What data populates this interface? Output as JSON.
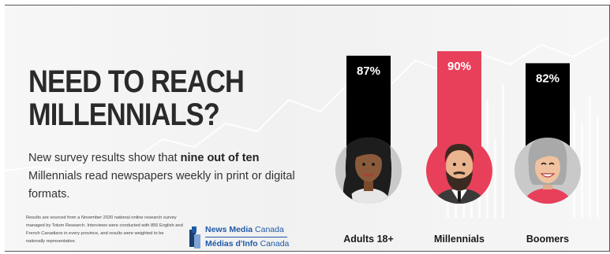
{
  "headline": {
    "line1": "NEED TO REACH",
    "line2": "MILLENNIALS?"
  },
  "subtext": {
    "before": "New survey results show that ",
    "bold": "nine out of ten",
    "after": " Millennials read newspapers weekly in print or digital formats."
  },
  "footnote": "Results are sourced from a November 2020 national online research survey managed by Totum Research. Interviews were conducted with 855 English and French Canadians in every province, and results were weighted to be nationally representative.",
  "logo": {
    "line1_bold": "News Media",
    "line1_light": " Canada",
    "line2_bold": "Médias d'Info",
    "line2_light": " Canada",
    "colors": {
      "primary": "#1f5aa6",
      "dark": "#1b3f6e",
      "light": "#7da4d4"
    }
  },
  "chart_data": {
    "type": "bar",
    "categories": [
      "Adults 18+",
      "Millennials",
      "Boomers"
    ],
    "values": [
      87,
      90,
      82
    ],
    "value_labels": [
      "87%",
      "90%",
      "82%"
    ],
    "colors": [
      "#000000",
      "#e8405a",
      "#000000"
    ],
    "value_label_colors": [
      "#ffffff",
      "#ffffff",
      "#ffffff"
    ],
    "title": "",
    "xlabel": "",
    "ylabel": "",
    "grid": false,
    "icons": [
      "woman-avatar-icon",
      "bearded-man-avatar-icon",
      "grey-haired-woman-avatar-icon"
    ]
  }
}
